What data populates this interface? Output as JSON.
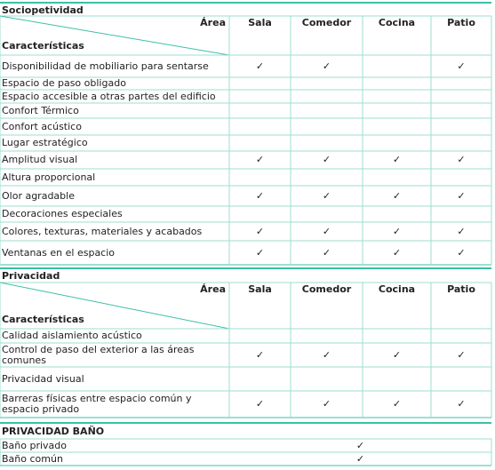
{
  "sections": [
    {
      "title": "Sociopetividad",
      "header": {
        "corner_top": "Área",
        "corner_bottom": "Características",
        "columns": [
          "Sala",
          "Comedor",
          "Cocina",
          "Patio"
        ]
      },
      "rows": [
        {
          "label": "Disponibilidad de mobiliario para sentarse",
          "cells": [
            "✓",
            "✓",
            null,
            "✓"
          ]
        },
        {
          "label": "Espacio de paso obligado",
          "cells": [
            null,
            null,
            null,
            null
          ]
        },
        {
          "label": "Espacio accesible a otras partes del edificio",
          "cells": [
            null,
            null,
            null,
            null
          ]
        },
        {
          "label": "Confort Térmico",
          "cells": [
            null,
            null,
            null,
            null
          ]
        },
        {
          "label": "Confort acústico",
          "cells": [
            null,
            null,
            null,
            null
          ]
        },
        {
          "label": "Lugar estratégico",
          "cells": [
            null,
            null,
            null,
            null
          ]
        },
        {
          "label": "Amplitud visual",
          "cells": [
            "✓",
            "✓",
            "✓",
            "✓"
          ]
        },
        {
          "label": "Altura proporcional",
          "cells": [
            null,
            null,
            null,
            null
          ]
        },
        {
          "label": "Olor agradable",
          "cells": [
            "✓",
            "✓",
            "✓",
            "✓"
          ]
        },
        {
          "label": "Decoraciones especiales",
          "cells": [
            null,
            null,
            null,
            null
          ]
        },
        {
          "label": "Colores, texturas, materiales y acabados",
          "cells": [
            "✓",
            "✓",
            "✓",
            "✓"
          ]
        },
        {
          "label": "Ventanas en el espacio",
          "cells": [
            "✓",
            "✓",
            "✓",
            "✓"
          ]
        }
      ]
    },
    {
      "title": "Privacidad",
      "header": {
        "corner_top": "Área",
        "corner_bottom": "Características",
        "columns": [
          "Sala",
          "Comedor",
          "Cocina",
          "Patio"
        ]
      },
      "rows": [
        {
          "label": "Calidad aislamiento acústico",
          "cells": [
            null,
            null,
            null,
            null
          ]
        },
        {
          "label": "Control de paso del exterior a las áreas comunes",
          "cells": [
            "✓",
            "✓",
            "✓",
            "✓"
          ]
        },
        {
          "label": "Privacidad visual",
          "cells": [
            null,
            null,
            null,
            null
          ]
        },
        {
          "label": "Barreras físicas entre espacio común y espacio privado",
          "cells": [
            "✓",
            "✓",
            "✓",
            "✓"
          ]
        }
      ]
    },
    {
      "title": "PRIVACIDAD BAÑO",
      "rows": [
        {
          "label": "Baño privado",
          "cells": [
            "✓"
          ]
        },
        {
          "label": "Baño común",
          "cells": [
            "✓"
          ]
        }
      ]
    }
  ]
}
